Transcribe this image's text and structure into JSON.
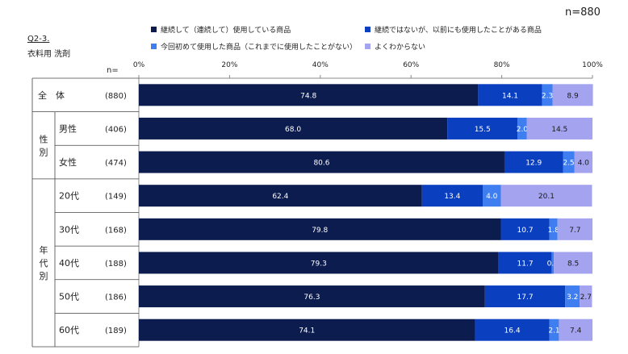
{
  "sample_size_label": "n=880",
  "question": {
    "code": "Q2-3.",
    "title": "衣料用 洗剤"
  },
  "n_header": "n=",
  "groups": [
    {
      "label": "全　体",
      "rows": [
        0
      ]
    },
    {
      "label": "性\n別",
      "rows": [
        1,
        2
      ]
    },
    {
      "label": "年\n代\n別",
      "rows": [
        3,
        4,
        5,
        6,
        7
      ]
    }
  ],
  "chart_data": {
    "type": "bar",
    "orientation": "horizontal",
    "stacked": true,
    "xlim": [
      0,
      100
    ],
    "x_ticks": [
      "0%",
      "20%",
      "40%",
      "60%",
      "80%",
      "100%"
    ],
    "categories": [
      "",
      "男性",
      "女性",
      "20代",
      "30代",
      "40代",
      "50代",
      "60代"
    ],
    "n": [
      "(880)",
      "(406)",
      "(474)",
      "(149)",
      "(168)",
      "(188)",
      "(186)",
      "(189)"
    ],
    "legend_position": "top",
    "series": [
      {
        "name": "継続して（連続して）使用している商品",
        "color": "#0d1c4e",
        "values": [
          74.8,
          68.0,
          80.6,
          62.4,
          79.8,
          79.3,
          76.3,
          74.1
        ]
      },
      {
        "name": "継続ではないが、以前にも使用したことがある商品",
        "color": "#0a3fc0",
        "values": [
          14.1,
          15.5,
          12.9,
          13.4,
          10.7,
          11.7,
          17.7,
          16.4
        ]
      },
      {
        "name": "今回初めて使用した商品（これまでに使用したことがない）",
        "color": "#3f7ef0",
        "values": [
          2.3,
          2.0,
          2.5,
          4.0,
          1.8,
          0.5,
          3.2,
          2.1
        ]
      },
      {
        "name": "よくわからない",
        "color": "#a3a3ef",
        "values": [
          8.9,
          14.5,
          4.0,
          20.1,
          7.7,
          8.5,
          2.7,
          7.4
        ]
      }
    ]
  }
}
